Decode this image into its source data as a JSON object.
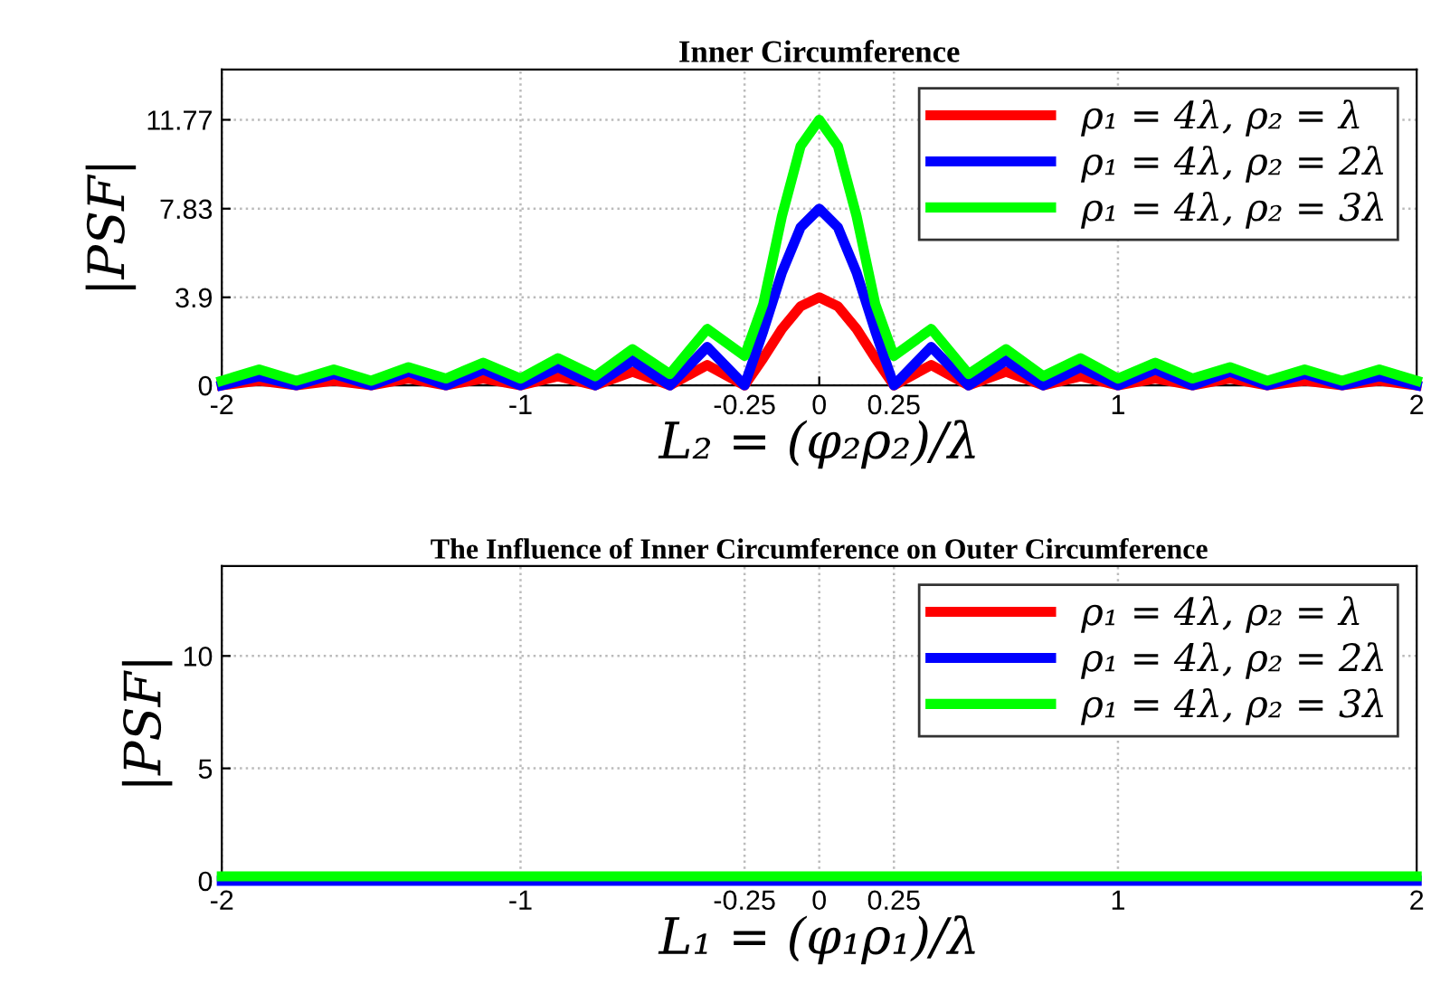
{
  "chart_data": [
    {
      "type": "line",
      "title": "Inner Circumference",
      "xlabel": "L₂ = (φ₂ρ₂)/λ",
      "ylabel": "|PSF|",
      "x": [
        -2,
        -1.875,
        -1.75,
        -1.625,
        -1.5,
        -1.375,
        -1.25,
        -1.125,
        -1,
        -0.875,
        -0.75,
        -0.625,
        -0.5,
        -0.375,
        -0.25,
        -0.1875,
        -0.125,
        -0.0625,
        0,
        0.0625,
        0.125,
        0.1875,
        0.25,
        0.375,
        0.5,
        0.625,
        0.75,
        0.875,
        1,
        1.125,
        1.25,
        1.375,
        1.5,
        1.625,
        1.75,
        1.875,
        2
      ],
      "series": [
        {
          "name": "ρ₁ = 4λ, ρ₂ = λ",
          "color": "#ff0000",
          "values": [
            0,
            0.2,
            0,
            0.2,
            0,
            0.3,
            0,
            0.3,
            0,
            0.4,
            0,
            0.6,
            0,
            0.9,
            0,
            1.2,
            2.5,
            3.5,
            3.9,
            3.5,
            2.5,
            1.2,
            0,
            0.9,
            0,
            0.6,
            0,
            0.4,
            0,
            0.3,
            0,
            0.3,
            0,
            0.2,
            0,
            0.2,
            0
          ]
        },
        {
          "name": "ρ₁ = 4λ, ρ₂ = 2λ",
          "color": "#0000ff",
          "values": [
            0,
            0.4,
            0,
            0.5,
            0,
            0.6,
            0,
            0.7,
            0,
            0.8,
            0,
            1.1,
            0,
            1.7,
            0,
            2.4,
            5.0,
            7.0,
            7.83,
            7.0,
            5.0,
            2.4,
            0,
            1.7,
            0,
            1.1,
            0,
            0.8,
            0,
            0.7,
            0,
            0.6,
            0,
            0.5,
            0,
            0.4,
            0
          ]
        },
        {
          "name": "ρ₁ = 4λ, ρ₂ = 3λ",
          "color": "#00ff00",
          "values": [
            0.2,
            0.7,
            0.2,
            0.7,
            0.2,
            0.8,
            0.3,
            1.0,
            0.3,
            1.2,
            0.4,
            1.6,
            0.5,
            2.5,
            1.3,
            3.6,
            7.5,
            10.6,
            11.77,
            10.6,
            7.5,
            3.6,
            1.3,
            2.5,
            0.5,
            1.6,
            0.4,
            1.2,
            0.3,
            1.0,
            0.3,
            0.8,
            0.2,
            0.7,
            0.2,
            0.7,
            0.2
          ]
        }
      ],
      "xlim": [
        -2,
        2
      ],
      "ylim": [
        0,
        14
      ],
      "xticks": [
        -2,
        -1,
        -0.25,
        0,
        0.25,
        1,
        2
      ],
      "yticks": [
        0,
        3.9,
        7.83,
        11.77
      ],
      "grid": true,
      "legend": "top right"
    },
    {
      "type": "line",
      "title": "The Influence of Inner Circumference on Outer Circumference",
      "xlabel": "L₁ = (φ₁ρ₁)/λ",
      "ylabel": "|PSF|",
      "x": [
        -2,
        -1.75,
        -1.5,
        -1.25,
        -1,
        -0.75,
        -0.5,
        -0.25,
        0,
        0.25,
        0.5,
        0.75,
        1,
        1.25,
        1.5,
        1.75,
        2
      ],
      "series": [
        {
          "name": "ρ₁ = 4λ, ρ₂ = λ",
          "color": "#ff0000",
          "values": [
            null,
            null,
            null,
            null,
            null,
            null,
            null,
            null,
            null,
            null,
            null,
            null,
            null,
            null,
            null,
            null,
            null
          ]
        },
        {
          "name": "ρ₁ = 4λ, ρ₂ = 2λ",
          "color": "#0000ff",
          "values": [
            0,
            0,
            0,
            0,
            0,
            0,
            0,
            0,
            0,
            0,
            0,
            0,
            0,
            0,
            0,
            0,
            0
          ]
        },
        {
          "name": "ρ₁ = 4λ, ρ₂ = 3λ",
          "color": "#00ff00",
          "values": [
            0.2,
            0.2,
            0.2,
            0.2,
            0.2,
            0.2,
            0.2,
            0.2,
            0.2,
            0.2,
            0.2,
            0.2,
            0.2,
            0.2,
            0.2,
            0.2,
            0.2
          ]
        }
      ],
      "xlim": [
        -2,
        2
      ],
      "ylim": [
        0,
        14
      ],
      "xticks": [
        -2,
        -1,
        -0.25,
        0,
        0.25,
        1,
        2
      ],
      "yticks": [
        0,
        5,
        10
      ],
      "grid": true,
      "legend": "top right"
    }
  ]
}
